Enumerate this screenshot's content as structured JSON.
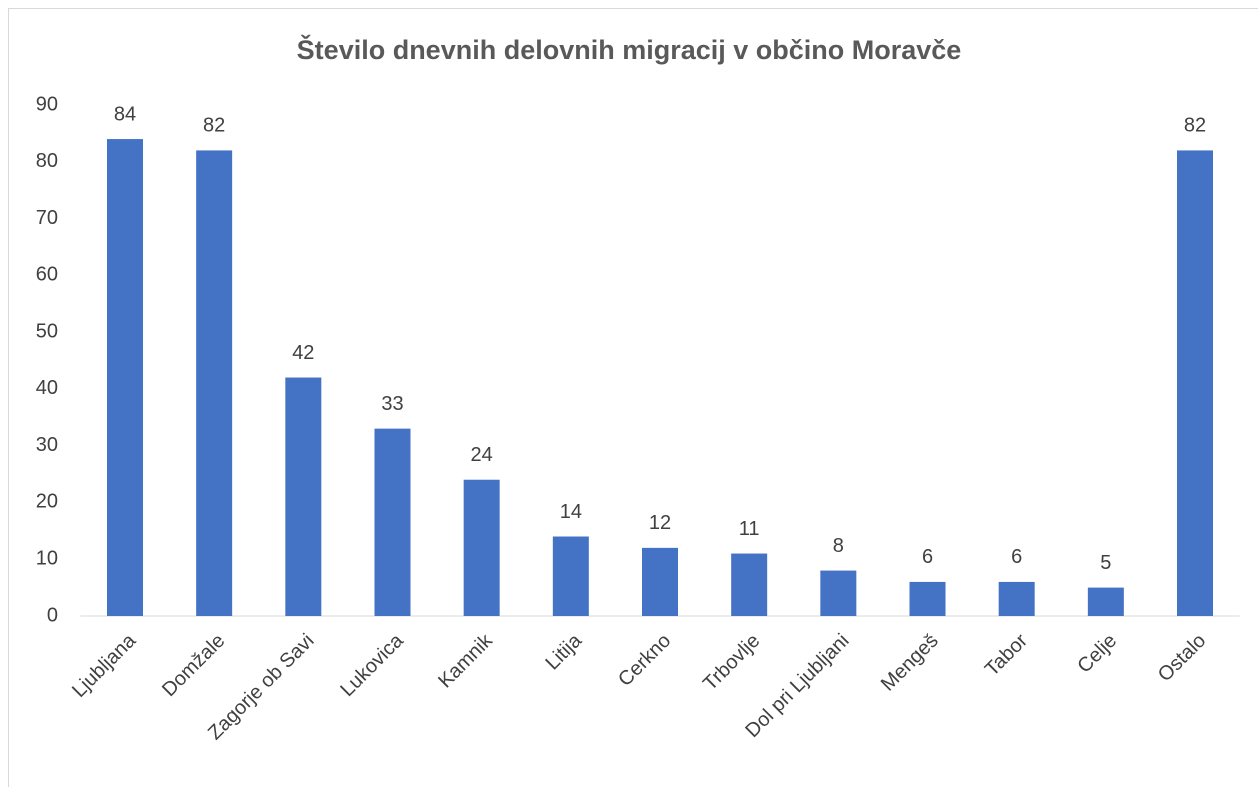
{
  "chart_data": {
    "type": "bar",
    "title": "Število dnevnih delovnih migracij v občino Moravče",
    "categories": [
      "Ljubljana",
      "Domžale",
      "Zagorje ob Savi",
      "Lukovica",
      "Kamnik",
      "Litija",
      "Cerkno",
      "Trbovlje",
      "Dol pri Ljubljani",
      "Mengeš",
      "Tabor",
      "Celje",
      "Ostalo"
    ],
    "values": [
      84,
      82,
      42,
      33,
      24,
      14,
      12,
      11,
      8,
      6,
      6,
      5,
      82
    ],
    "color": "#4472c4",
    "ylim": [
      0,
      90
    ],
    "yticks": [
      0,
      10,
      20,
      30,
      40,
      50,
      60,
      70,
      80,
      90
    ],
    "grid": false
  }
}
